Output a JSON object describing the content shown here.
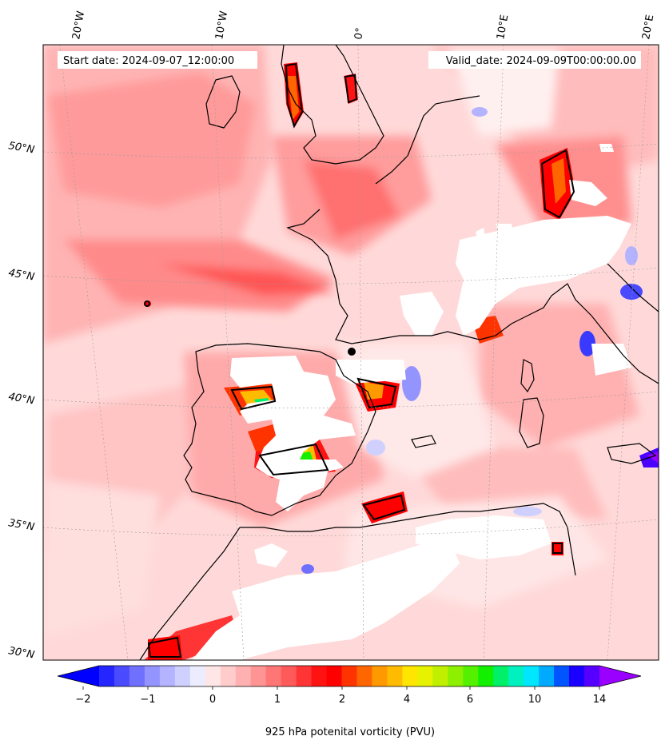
{
  "header": {
    "start_date": "Start date: 2024-09-07_12:00:00",
    "valid_date": "Valid_date: 2024-09-09T00:00:00.00"
  },
  "chart_data": {
    "type": "heatmap",
    "field": "925 hPa potential vorticity",
    "map": {
      "lon_range": [
        -20,
        20
      ],
      "lat_range": [
        30,
        53
      ],
      "lon_ticks": [
        "20°W",
        "10°W",
        "0°",
        "10°E",
        "20°E"
      ],
      "lat_ticks": [
        "30°N",
        "35°N",
        "40°N",
        "45°N",
        "50°N"
      ],
      "grid": true
    },
    "colorbar": {
      "label": "925 hPa potenital vorticity (PVU)",
      "tick_labels": [
        "-2",
        "-1",
        "0",
        "1",
        "2",
        "4",
        "6",
        "10",
        "14"
      ],
      "extend": "both",
      "colors": [
        "#0000ff",
        "#2525ff",
        "#4a4aff",
        "#7070ff",
        "#9494ff",
        "#b3b3ff",
        "#d0d0ff",
        "#ececff",
        "#ffe6e6",
        "#ffcccc",
        "#ffb0b0",
        "#ff9494",
        "#ff7676",
        "#ff5a5a",
        "#ff3535",
        "#ff1212",
        "#ff0000",
        "#ff3300",
        "#ff6600",
        "#ff9900",
        "#ffbb00",
        "#ffe600",
        "#e6f200",
        "#c0f000",
        "#8cf000",
        "#55f000",
        "#12f000",
        "#00f06a",
        "#00f0c0",
        "#00e6ff",
        "#00aaff",
        "#0055ff",
        "#1a00ff",
        "#5500ff",
        "#9900ff"
      ]
    }
  }
}
